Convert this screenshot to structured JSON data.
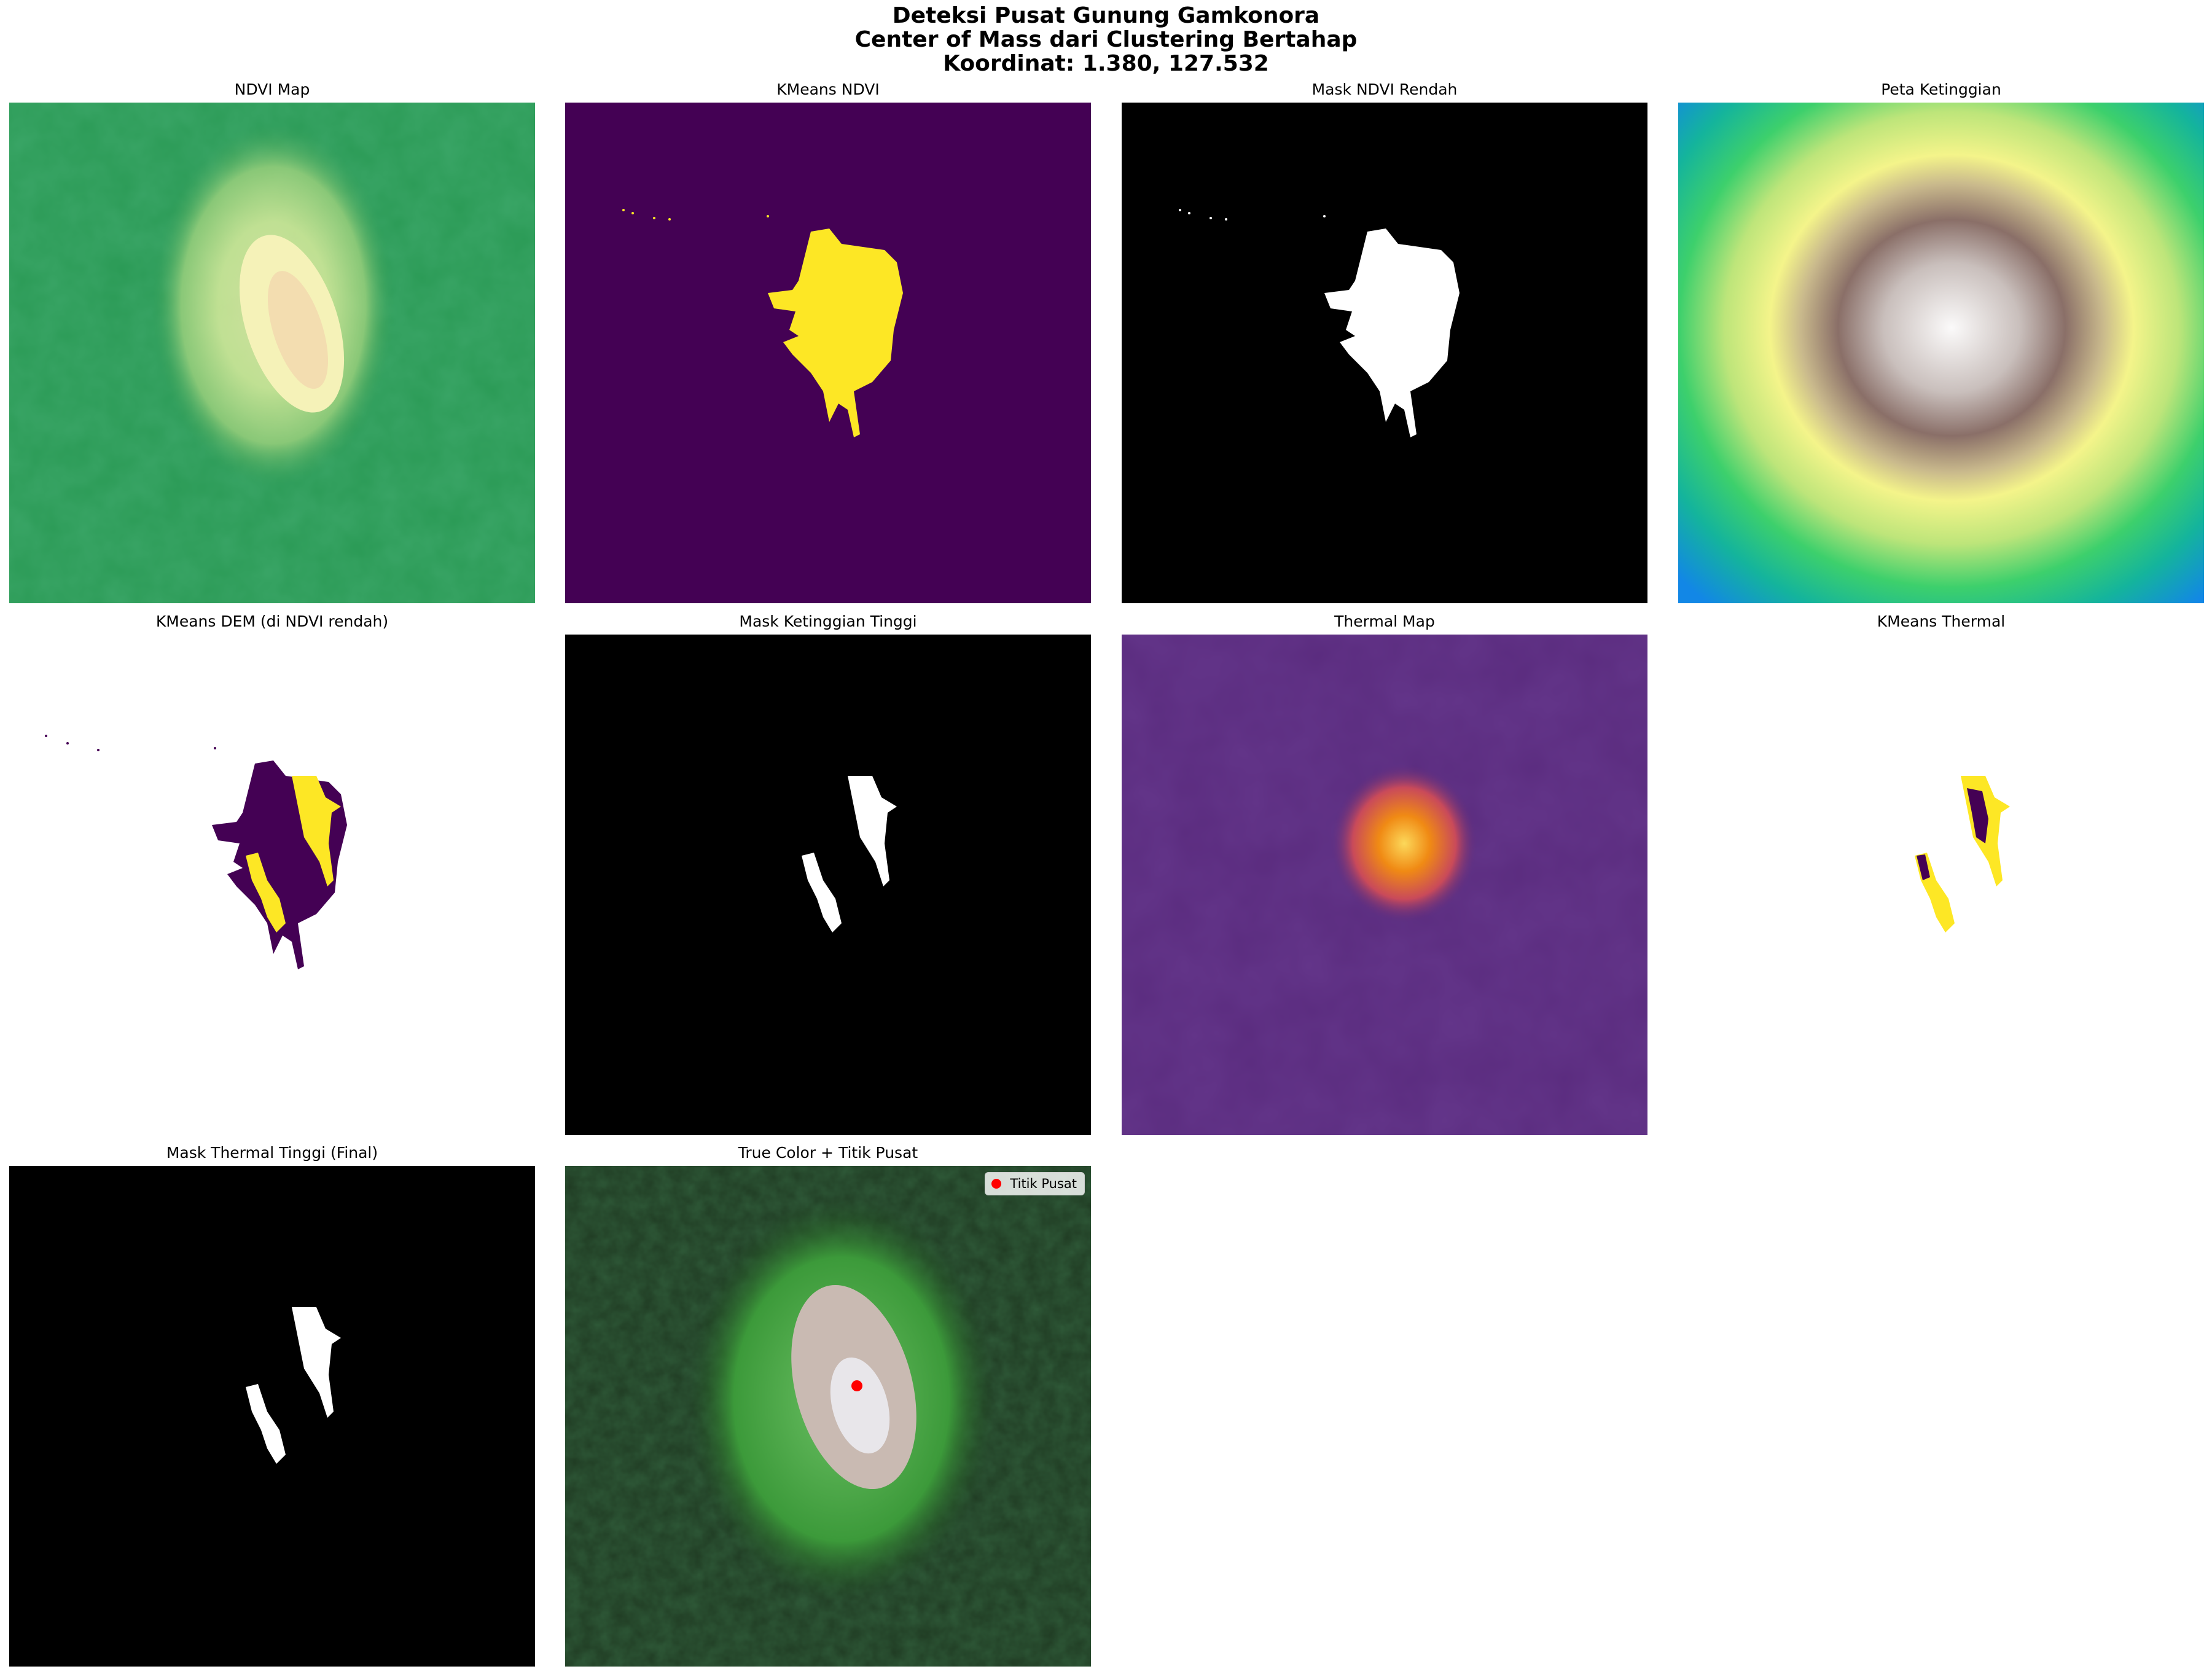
{
  "figure": {
    "title_line1": "Deteksi Pusat Gunung Gamkonora",
    "title_line2": "Center of Mass dari Clustering Bertahap",
    "title_line3": "Koordinat: 1.380, 127.532"
  },
  "panels": {
    "ndvi_map": "NDVI Map",
    "kmeans_ndvi": "KMeans NDVI",
    "mask_ndvi_rendah": "Mask NDVI Rendah",
    "peta_ketinggian": "Peta Ketinggian",
    "kmeans_dem": "KMeans DEM (di NDVI rendah)",
    "mask_ketinggian_tinggi": "Mask Ketinggian Tinggi",
    "thermal_map": "Thermal Map",
    "kmeans_thermal": "KMeans Thermal",
    "mask_thermal_final": "Mask Thermal Tinggi (Final)",
    "true_color": "True Color + Titik Pusat"
  },
  "legend": {
    "label": "Titik Pusat",
    "marker_color": "#ff0000"
  },
  "colors": {
    "viridis_dark": "#440154",
    "viridis_yellow": "#fde725",
    "mask_background": "#000000",
    "mask_foreground": "#ffffff",
    "ndvi_green": "#2a9a55",
    "thermal_base": "#5a2b7e",
    "thermal_hot": "#f08a14"
  },
  "icons": {
    "legend_marker": "red-dot-icon"
  }
}
